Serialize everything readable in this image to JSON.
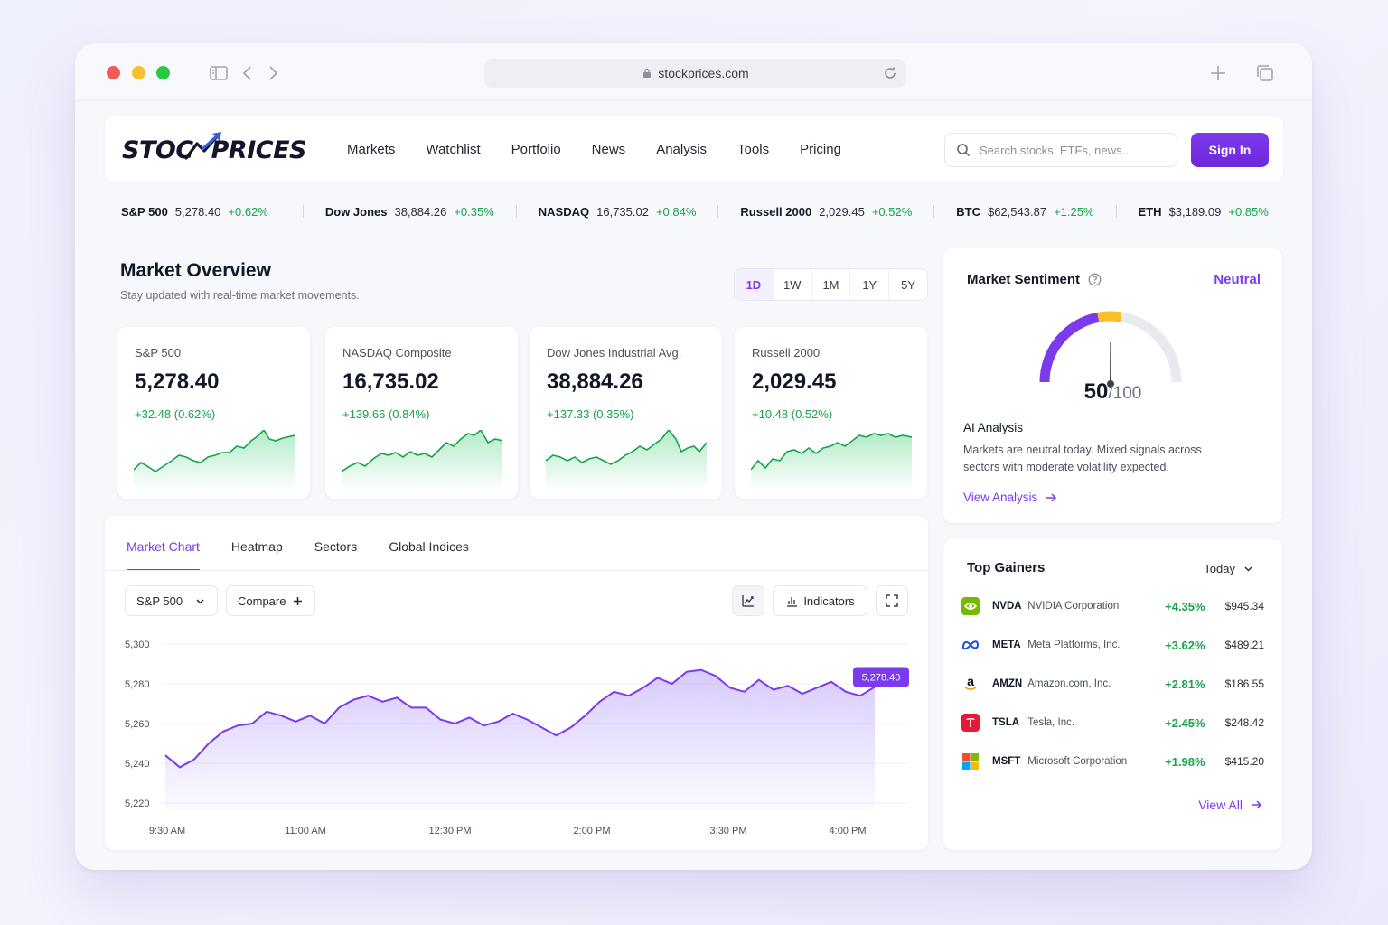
{
  "browser": {
    "url": "stockprices.com"
  },
  "header": {
    "logo_text_left": "STOC",
    "logo_text_right": "PRICES",
    "nav": [
      "Markets",
      "Watchlist",
      "Portfolio",
      "News",
      "Analysis",
      "Tools",
      "Pricing"
    ],
    "search_placeholder": "Search stocks, ETFs, news...",
    "signin_label": "Sign In"
  },
  "ticker": [
    {
      "symbol": "S&P 500",
      "value": "5,278.40",
      "change": "+0.62%"
    },
    {
      "symbol": "Dow Jones",
      "value": "38,884.26",
      "change": "+0.35%"
    },
    {
      "symbol": "NASDAQ",
      "value": "16,735.02",
      "change": "+0.84%"
    },
    {
      "symbol": "Russell 2000",
      "value": "2,029.45",
      "change": "+0.52%"
    },
    {
      "symbol": "BTC",
      "value": "$62,543.87",
      "change": "+1.25%"
    },
    {
      "symbol": "ETH",
      "value": "$3,189.09",
      "change": "+0.85%"
    }
  ],
  "overview": {
    "title": "Market Overview",
    "subtitle": "Stay updated with real-time market movements.",
    "timeframes": [
      "1D",
      "1W",
      "1M",
      "1Y",
      "5Y"
    ],
    "active_timeframe": "1D",
    "cards": [
      {
        "name": "S&P 500",
        "value": "5,278.40",
        "change": "+32.48 (0.62%)"
      },
      {
        "name": "NASDAQ Composite",
        "value": "16,735.02",
        "change": "+139.66 (0.84%)"
      },
      {
        "name": "Dow Jones Industrial Avg.",
        "value": "38,884.26",
        "change": "+137.33 (0.35%)"
      },
      {
        "name": "Russell 2000",
        "value": "2,029.45",
        "change": "+10.48 (0.52%)"
      }
    ]
  },
  "chart_panel": {
    "tabs": [
      "Market Chart",
      "Heatmap",
      "Sectors",
      "Global Indices"
    ],
    "active_tab": "Market Chart",
    "symbol_select": "S&P 500",
    "compare_label": "Compare",
    "indicators_label": "Indicators"
  },
  "chart_data": {
    "type": "area",
    "color": "#7c3aed",
    "x_ticks": [
      "9:30 AM",
      "11:00 AM",
      "12:30 PM",
      "2:00 PM",
      "3:30 PM",
      "4:00 PM"
    ],
    "y_ticks": [
      "5,300",
      "5,280",
      "5,260",
      "5,240",
      "5,220"
    ],
    "ylim": [
      5220,
      5300
    ],
    "last_value_label": "5,278.40",
    "values": [
      5244,
      5238,
      5242,
      5250,
      5256,
      5259,
      5260,
      5266,
      5264,
      5261,
      5264,
      5260,
      5268,
      5272,
      5274,
      5271,
      5273,
      5268,
      5268,
      5262,
      5260,
      5263,
      5259,
      5261,
      5265,
      5262,
      5258,
      5254,
      5258,
      5264,
      5271,
      5276,
      5274,
      5278,
      5283,
      5280,
      5286,
      5287,
      5284,
      5278,
      5276,
      5282,
      5277,
      5279,
      5275,
      5278,
      5281,
      5276,
      5274,
      5278.4
    ]
  },
  "sentiment": {
    "title": "Market Sentiment",
    "status": "Neutral",
    "score": "50",
    "score_max": "/100",
    "score_value": 50,
    "ai_title": "AI Analysis",
    "ai_text": "Markets are neutral today. Mixed signals across sectors with moderate volatility expected.",
    "view_label": "View Analysis"
  },
  "gainers": {
    "title": "Top Gainers",
    "range": "Today",
    "rows": [
      {
        "symbol": "NVDA",
        "name": "NVIDIA Corporation",
        "change": "+4.35%",
        "price": "$945.34",
        "icon": "nvidia-icon"
      },
      {
        "symbol": "META",
        "name": "Meta Platforms, Inc.",
        "change": "+3.62%",
        "price": "$489.21",
        "icon": "meta-icon"
      },
      {
        "symbol": "AMZN",
        "name": "Amazon.com, Inc.",
        "change": "+2.81%",
        "price": "$186.55",
        "icon": "amazon-icon"
      },
      {
        "symbol": "TSLA",
        "name": "Tesla, Inc.",
        "change": "+2.45%",
        "price": "$248.42",
        "icon": "tesla-icon"
      },
      {
        "symbol": "MSFT",
        "name": "Microsoft Corporation",
        "change": "+1.98%",
        "price": "$415.20",
        "icon": "microsoft-icon"
      }
    ],
    "view_all_label": "View All"
  }
}
